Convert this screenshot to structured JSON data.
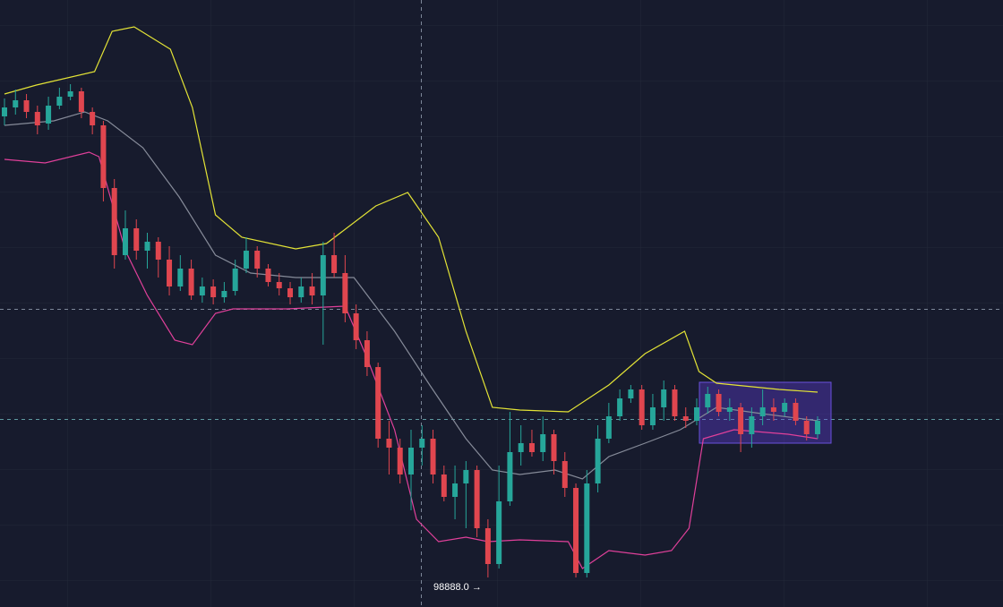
{
  "chart_data": {
    "type": "candlestick",
    "ylim": [
      98558,
      105338
    ],
    "up_color": "#26a69a",
    "down_color": "#e0464f",
    "open": [
      104038,
      104138,
      104218,
      104088,
      103958,
      104158,
      104258,
      104318,
      104088,
      103938,
      103238,
      102488,
      102788,
      102538,
      102638,
      102438,
      102138,
      102338,
      102038,
      102138,
      102018,
      102088,
      102338,
      102538,
      102338,
      102188,
      102118,
      102018,
      102138,
      102038,
      102488,
      102288,
      101838,
      101538,
      101238,
      100438,
      100338,
      100038,
      100338,
      100438,
      100038,
      99788,
      99938,
      100088,
      99438,
      99038,
      99738,
      100288,
      100388,
      100288,
      100488,
      100188,
      99888,
      98938,
      99938,
      100438,
      100688,
      100888,
      100988,
      100588,
      100788,
      100988,
      100688,
      100638,
      100788,
      100938,
      100738,
      100788,
      100488,
      100688,
      100788,
      100738,
      100838,
      100638,
      100488
    ],
    "high": [
      104238,
      104338,
      104288,
      104158,
      104258,
      104358,
      104398,
      104358,
      104138,
      103988,
      103338,
      102988,
      102888,
      102738,
      102688,
      102588,
      102488,
      102438,
      102238,
      102218,
      102188,
      102438,
      102688,
      102588,
      102388,
      102288,
      102188,
      102238,
      102288,
      102638,
      102738,
      102488,
      101938,
      101638,
      101288,
      100638,
      100438,
      100538,
      100588,
      100538,
      100138,
      100138,
      100188,
      100138,
      99538,
      100138,
      100738,
      100588,
      100538,
      100688,
      100538,
      100288,
      99938,
      100088,
      100588,
      100838,
      100988,
      101038,
      101038,
      100938,
      101088,
      101038,
      100788,
      100888,
      101018,
      100988,
      100888,
      100838,
      100788,
      100988,
      100888,
      100888,
      100888,
      100688,
      100688
    ],
    "low": [
      103938,
      104058,
      104018,
      103838,
      103888,
      104118,
      104218,
      104018,
      103838,
      103088,
      102338,
      102438,
      102438,
      102338,
      102238,
      102038,
      102088,
      101988,
      101958,
      101938,
      101958,
      102038,
      102288,
      102238,
      102138,
      102038,
      101938,
      101958,
      101938,
      101488,
      102238,
      101738,
      101438,
      101138,
      100338,
      100038,
      99938,
      99638,
      100138,
      99938,
      99738,
      99538,
      99438,
      99338,
      98888,
      98988,
      99688,
      100138,
      100238,
      100188,
      100038,
      99788,
      98888,
      98888,
      99838,
      100388,
      100638,
      100838,
      100538,
      100538,
      100638,
      100638,
      100558,
      100588,
      100718,
      100688,
      100638,
      100288,
      100338,
      100588,
      100638,
      100688,
      100588,
      100418,
      100438
    ],
    "close": [
      104138,
      104218,
      104088,
      103938,
      104158,
      104258,
      104318,
      104088,
      103938,
      103238,
      102488,
      102788,
      102538,
      102638,
      102438,
      102138,
      102338,
      102038,
      102138,
      102018,
      102088,
      102338,
      102538,
      102338,
      102188,
      102118,
      102018,
      102138,
      102038,
      102488,
      102288,
      101838,
      101538,
      101238,
      100438,
      100338,
      100038,
      100338,
      100438,
      100038,
      99788,
      99938,
      100088,
      99438,
      99038,
      99738,
      100288,
      100388,
      100288,
      100488,
      100188,
      99888,
      98938,
      99938,
      100438,
      100688,
      100888,
      100988,
      100588,
      100788,
      100988,
      100688,
      100638,
      100788,
      100938,
      100738,
      100788,
      100488,
      100688,
      100788,
      100738,
      100838,
      100638,
      100488,
      100638
    ],
    "bands": {
      "upper": {
        "color": "#e3e336",
        "x": [
          0,
          2.9,
          8.2,
          9.8,
          11.8,
          15.1,
          17.1,
          19.2,
          21.6,
          26.5,
          29.3,
          33.8,
          36.7,
          39.5,
          42.0,
          44.4,
          46.9,
          51.3,
          55.0,
          58.3,
          61.9,
          63.2,
          64.8,
          70.5,
          74
        ],
        "values": [
          104288,
          104388,
          104538,
          104988,
          105038,
          104788,
          104138,
          102938,
          102688,
          102558,
          102618,
          103038,
          103188,
          102688,
          101638,
          100788,
          100758,
          100738,
          101038,
          101388,
          101638,
          101188,
          101058,
          100988,
          100958
        ]
      },
      "middle": {
        "color": "#868b99",
        "x": [
          0,
          4.5,
          7.3,
          9.4,
          12.6,
          15.9,
          19.2,
          22.4,
          26.5,
          29.8,
          31.8,
          35.5,
          38.7,
          42.0,
          44.4,
          46.9,
          50.1,
          52.6,
          55.0,
          58.3,
          61.5,
          64.8,
          68.9,
          74
        ],
        "values": [
          103938,
          103988,
          104088,
          103988,
          103688,
          103138,
          102488,
          102288,
          102238,
          102238,
          102238,
          101638,
          101038,
          100438,
          100088,
          100038,
          100088,
          99988,
          100238,
          100388,
          100538,
          100788,
          100718,
          100638
        ]
      },
      "lower": {
        "color": "#e0409a",
        "x": [
          0,
          3.7,
          7.7,
          8.6,
          11.0,
          13.0,
          15.5,
          17.1,
          19.2,
          20.8,
          25.7,
          31.0,
          33.0,
          35.5,
          37.5,
          39.5,
          42.0,
          44.0,
          46.9,
          51.3,
          52.6,
          55.0,
          58.3,
          60.7,
          62.3,
          63.6,
          66.4,
          71.3,
          74
        ],
        "values": [
          103558,
          103518,
          103638,
          103588,
          102538,
          102038,
          101538,
          101488,
          101838,
          101888,
          101888,
          101918,
          101338,
          100538,
          99538,
          99288,
          99338,
          99288,
          99308,
          99288,
          98988,
          99188,
          99138,
          99188,
          99438,
          100438,
          100538,
          100488,
          100438
        ]
      }
    },
    "annotation": "98888.0 →"
  }
}
